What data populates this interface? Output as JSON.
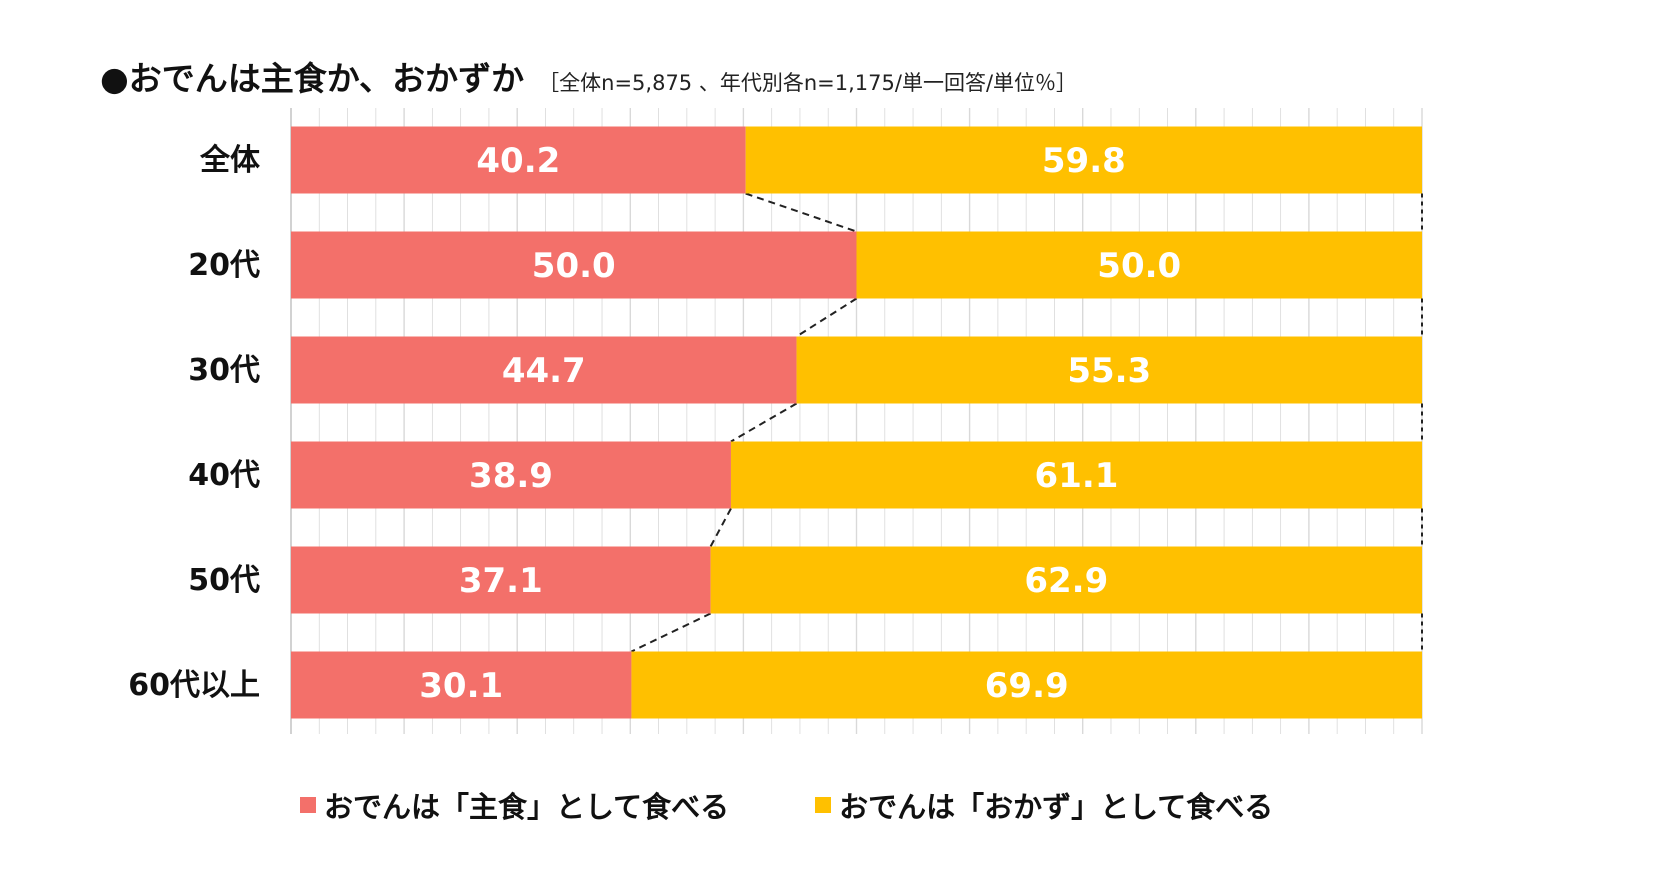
{
  "title": "●おでんは主食か、おかずか",
  "subtitle": "［全体n=5,875 、年代別各n=1,175/単一回答/単位％］",
  "colors": {
    "staple": "#F3706A",
    "side": "#FFC000",
    "grid": "#D9D9D9",
    "connector": "#222222"
  },
  "chart_data": {
    "type": "bar",
    "orientation": "horizontal",
    "stacked": true,
    "title": "●おでんは主食か、おかずか",
    "subtitle": "［全体n=5,875 、年代別各n=1,175/単一回答/単位％］",
    "categories": [
      "全体",
      "20代",
      "30代",
      "40代",
      "50代",
      "60代以上"
    ],
    "series": [
      {
        "name": "おでんは「主食」として食べる",
        "values": [
          40.2,
          50.0,
          44.7,
          38.9,
          37.1,
          30.1
        ]
      },
      {
        "name": "おでんは「おかず」として食べる",
        "values": [
          59.8,
          50.0,
          55.3,
          61.1,
          62.9,
          69.9
        ]
      }
    ],
    "value_labels": [
      [
        "40.2",
        "50.0",
        "44.7",
        "38.9",
        "37.1",
        "30.1"
      ],
      [
        "59.8",
        "50.0",
        "55.3",
        "61.1",
        "62.9",
        "69.9"
      ]
    ],
    "xlim": [
      0,
      100
    ],
    "grid": true,
    "series_lines": true,
    "legend": "bottom"
  },
  "legend": [
    {
      "label": "おでんは「主食」として食べる"
    },
    {
      "label": "おでんは「おかず」として食べる"
    }
  ]
}
